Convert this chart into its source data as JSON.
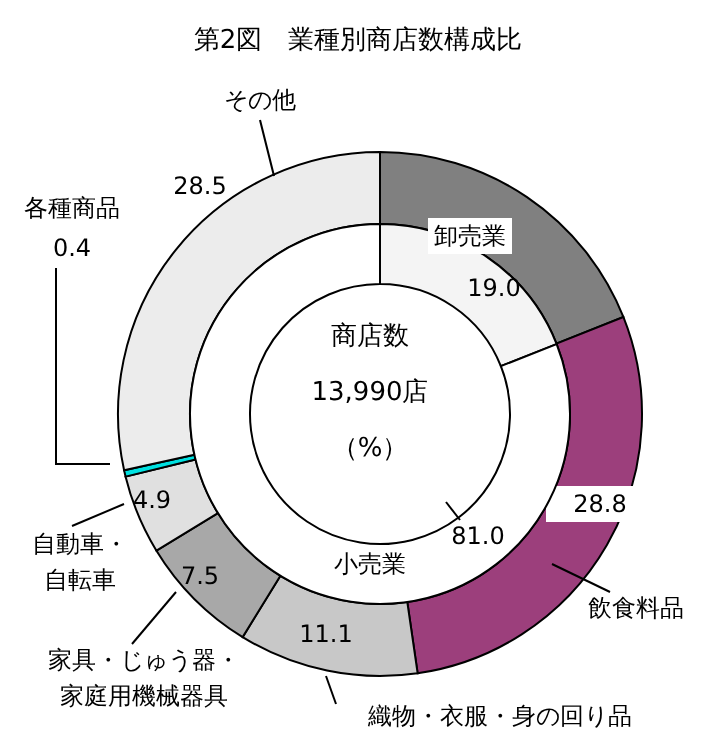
{
  "chart_data": [
    {
      "type": "donut",
      "title": "第2図　業種別商店数構成比",
      "categories": [
        null,
        "飲食料品",
        "織物・衣服・身の回り品",
        "家具・じゅう器・家庭用機械器具",
        "自動車・自転車",
        "各種商品",
        "その他"
      ],
      "values": [
        19.0,
        28.8,
        11.1,
        7.5,
        4.9,
        0.4,
        28.5
      ],
      "value_labels": [
        null,
        "28.8",
        "11.1",
        "7.5",
        "4.9",
        "0.4",
        "28.5"
      ],
      "colors": [
        "#808080",
        "#9c3f7c",
        "#c8c8c8",
        "#a8a8a8",
        "#e0e0e0",
        "#00e0e0",
        "#ececec"
      ]
    },
    {
      "type": "donut",
      "categories": [
        "卸売業",
        "小売業"
      ],
      "values": [
        19.0,
        81.0
      ],
      "value_labels": [
        "19.0",
        "81.0"
      ],
      "colors": [
        "#f4f4f4",
        "#ffffff"
      ],
      "annotations": [
        "商店数",
        "13,990店",
        "（%）"
      ]
    }
  ]
}
